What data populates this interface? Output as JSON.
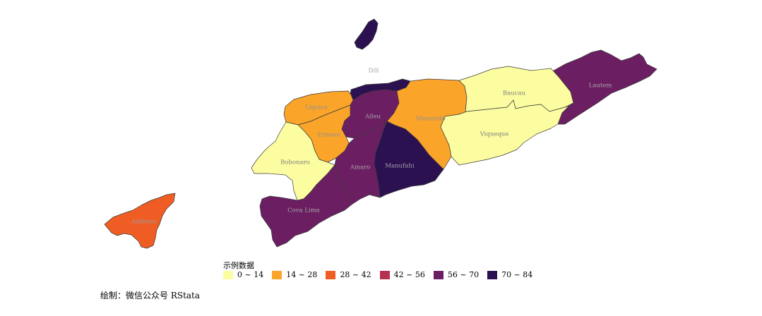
{
  "legend": {
    "title": "示例数据",
    "items": [
      {
        "label": "0 ~ 14",
        "color": "#fcfda0"
      },
      {
        "label": "14 ~ 28",
        "color": "#fba42a"
      },
      {
        "label": "28 ~ 42",
        "color": "#f05d24"
      },
      {
        "label": "42 ~ 56",
        "color": "#b5314e"
      },
      {
        "label": "56 ~ 70",
        "color": "#6c1e62"
      },
      {
        "label": "70 ~ 84",
        "color": "#2c1151"
      }
    ]
  },
  "regions": [
    {
      "name": "Dili",
      "bin": 5
    },
    {
      "name": "Liquica",
      "bin": 1
    },
    {
      "name": "Aileu",
      "bin": 4
    },
    {
      "name": "Ermera",
      "bin": 1
    },
    {
      "name": "Manatuto",
      "bin": 1
    },
    {
      "name": "Baucau",
      "bin": 0
    },
    {
      "name": "Lautem",
      "bin": 4
    },
    {
      "name": "Viqueque",
      "bin": 0
    },
    {
      "name": "Bobonaro",
      "bin": 0
    },
    {
      "name": "Ainaro",
      "bin": 4
    },
    {
      "name": "Manufahi",
      "bin": 5
    },
    {
      "name": "Cova Lima",
      "bin": 4
    },
    {
      "name": "Ambeno",
      "bin": 2
    }
  ],
  "islands": [
    {
      "bin": 5
    }
  ],
  "caption": "绘制：微信公众号 RStata"
}
